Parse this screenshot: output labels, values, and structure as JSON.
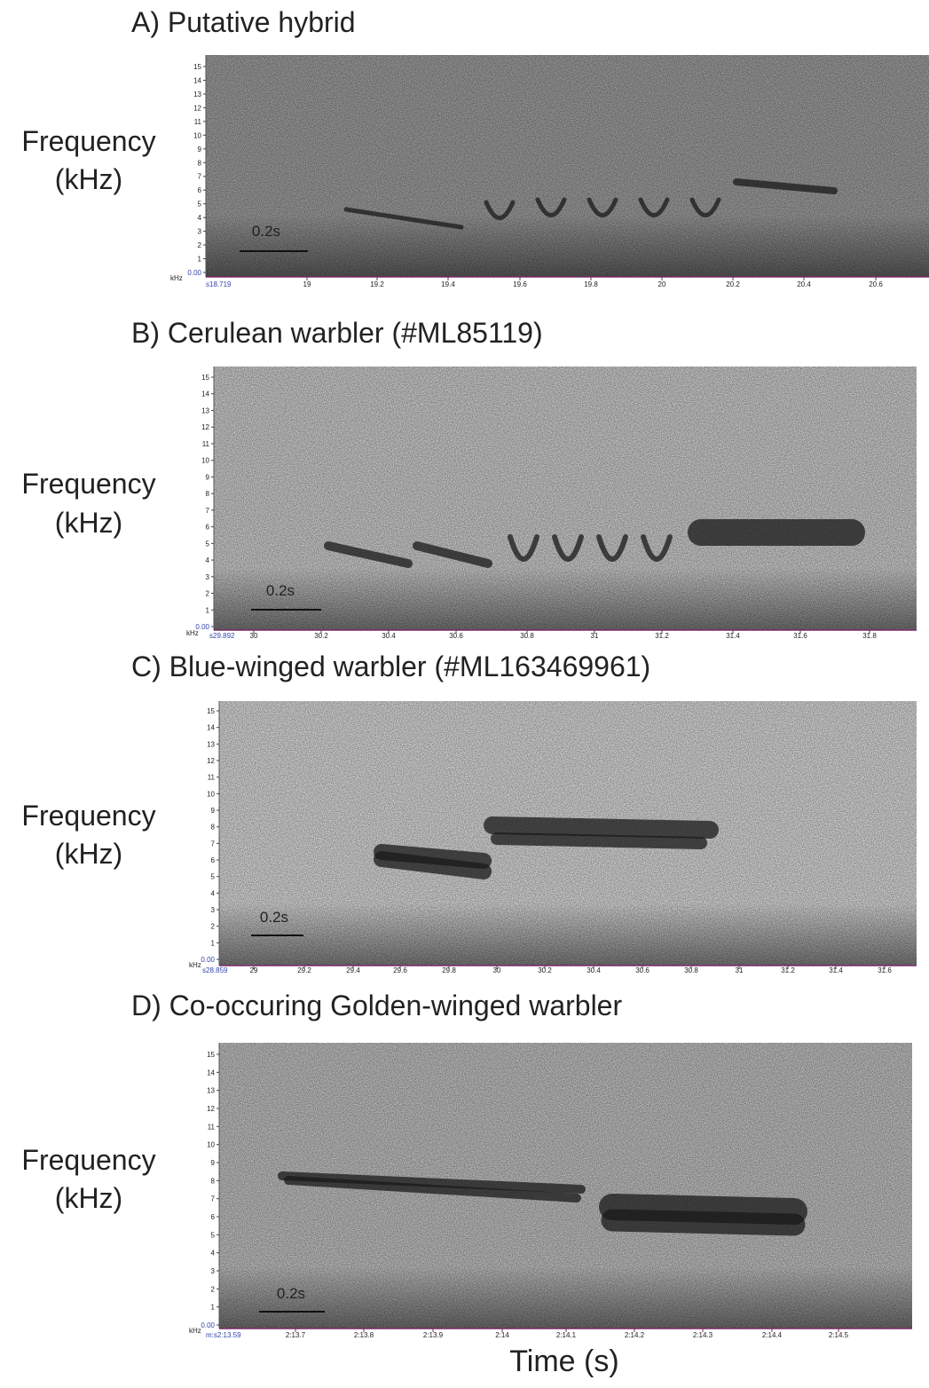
{
  "panels": [
    {
      "title": "A) Putative hybrid",
      "y_label": [
        "Frequency",
        "(kHz)"
      ],
      "unit": "kHz",
      "y_ticks": [
        "0.00",
        "1",
        "2",
        "3",
        "4",
        "5",
        "6",
        "7",
        "8",
        "9",
        "10",
        "11",
        "12",
        "13",
        "14",
        "15"
      ],
      "x_start": "s18.719",
      "x_ticks": [
        "19",
        "19.2",
        "19.4",
        "19.6",
        "19.8",
        "20",
        "20.2",
        "20.4",
        "20.6"
      ],
      "scale_bar": "0.2s"
    },
    {
      "title": "B) Cerulean warbler (#ML85119)",
      "y_label": [
        "Frequency",
        "(kHz)"
      ],
      "unit": "kHz",
      "y_ticks": [
        "0.00",
        "1",
        "2",
        "3",
        "4",
        "5",
        "6",
        "7",
        "8",
        "9",
        "10",
        "11",
        "12",
        "13",
        "14",
        "15"
      ],
      "x_start": "s29.892",
      "x_ticks": [
        "30",
        "30.2",
        "30.4",
        "30.6",
        "30.8",
        "31",
        "31.2",
        "31.4",
        "31.6",
        "31.8"
      ],
      "scale_bar": "0.2s"
    },
    {
      "title": "C) Blue-winged warbler (#ML163469961)",
      "y_label": [
        "Frequency",
        "(kHz)"
      ],
      "unit": "kHz",
      "y_ticks": [
        "0.00",
        "1",
        "2",
        "3",
        "4",
        "5",
        "6",
        "7",
        "8",
        "9",
        "10",
        "11",
        "12",
        "13",
        "14",
        "15"
      ],
      "x_start": "s28.859",
      "x_ticks": [
        "29",
        "29.2",
        "29.4",
        "29.6",
        "29.8",
        "30",
        "30.2",
        "30.4",
        "30.6",
        "30.8",
        "31",
        "31.2",
        "31.4",
        "31.6"
      ],
      "scale_bar": "0.2s"
    },
    {
      "title": "D) Co-occuring Golden-winged warbler",
      "y_label": [
        "Frequency",
        "(kHz)"
      ],
      "unit": "kHz",
      "y_ticks": [
        "0.00",
        "1",
        "2",
        "3",
        "4",
        "5",
        "6",
        "7",
        "8",
        "9",
        "10",
        "11",
        "12",
        "13",
        "14",
        "15"
      ],
      "x_start": "m:s2:13.59",
      "x_ticks": [
        "2:13.7",
        "2:13.8",
        "2:13.9",
        "2:14",
        "2:14.1",
        "2:14.2",
        "2:14.3",
        "2:14.4",
        "2:14.5"
      ],
      "scale_bar": "0.2s"
    }
  ],
  "x_label": "Time (s)"
}
